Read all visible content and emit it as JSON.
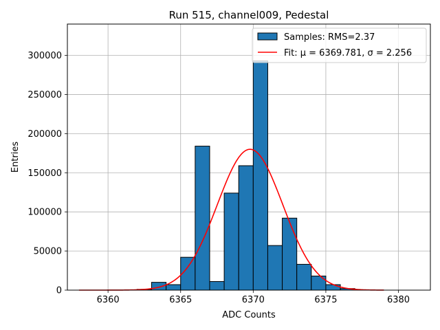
{
  "chart_data": {
    "type": "bar",
    "title": "Run 515, channel009, Pedestal",
    "xlabel": "ADC Counts",
    "ylabel": "Entries",
    "xlim": [
      6357.2,
      6382.2
    ],
    "ylim": [
      0,
      340000
    ],
    "x_ticks": [
      6360,
      6365,
      6370,
      6375,
      6380
    ],
    "y_ticks": [
      0,
      50000,
      100000,
      150000,
      200000,
      250000,
      300000
    ],
    "grid": true,
    "legend_position": "top-right",
    "bin_width": 1,
    "histogram": {
      "name": "Samples: RMS=2.37",
      "color": "#1f77b4",
      "bins": [
        {
          "x": 6362,
          "value": 1000
        },
        {
          "x": 6363,
          "value": 10000
        },
        {
          "x": 6364,
          "value": 7000
        },
        {
          "x": 6365,
          "value": 42000
        },
        {
          "x": 6366,
          "value": 184000
        },
        {
          "x": 6367,
          "value": 11000
        },
        {
          "x": 6368,
          "value": 124000
        },
        {
          "x": 6369,
          "value": 159000
        },
        {
          "x": 6370,
          "value": 293000
        },
        {
          "x": 6371,
          "value": 57000
        },
        {
          "x": 6372,
          "value": 92000
        },
        {
          "x": 6373,
          "value": 33000
        },
        {
          "x": 6374,
          "value": 18000
        },
        {
          "x": 6375,
          "value": 7000
        },
        {
          "x": 6376,
          "value": 2000
        }
      ]
    },
    "fit": {
      "name": "Fit: μ = 6369.781, σ = 2.256",
      "color": "#ff0000",
      "mu": 6369.781,
      "sigma": 2.256,
      "amplitude": 180000,
      "x_range": [
        6358,
        6379
      ]
    }
  }
}
